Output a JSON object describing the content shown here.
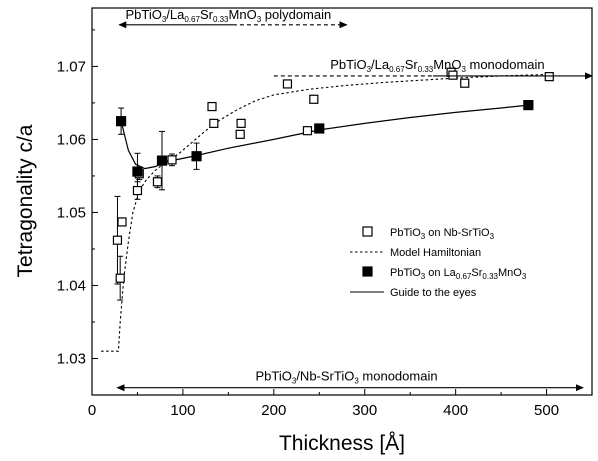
{
  "chart_data": {
    "type": "scatter",
    "title": "",
    "xlabel": "Thickness [Å]",
    "ylabel": "Tetragonality c/a",
    "xlim": [
      0,
      550
    ],
    "ylim": [
      1.025,
      1.078
    ],
    "xticks": [
      0,
      100,
      200,
      300,
      400,
      500
    ],
    "xtick_labels": [
      "0",
      "100",
      "200",
      "300",
      "400",
      "500"
    ],
    "yticks": [
      1.03,
      1.04,
      1.05,
      1.06,
      1.07
    ],
    "ytick_labels": [
      "1.03",
      "1.04",
      "1.05",
      "1.06",
      "1.07"
    ],
    "grid": false,
    "legend": {
      "position": "center-right",
      "entries": [
        {
          "label_parts": [
            [
              "PbTiO",
              "n"
            ],
            [
              "3",
              "s"
            ],
            [
              " on Nb-SrTiO",
              "n"
            ],
            [
              "3",
              "s"
            ]
          ],
          "marker": "open-square"
        },
        {
          "label_parts": [
            [
              "Model Hamiltonian",
              "n"
            ]
          ],
          "marker": "dotted-line"
        },
        {
          "label_parts": [
            [
              "PbTiO",
              "n"
            ],
            [
              "3",
              "s"
            ],
            [
              " on La",
              "n"
            ],
            [
              "0.67",
              "s"
            ],
            [
              "Sr",
              "n"
            ],
            [
              "0.33",
              "s"
            ],
            [
              "MnO",
              "n"
            ],
            [
              "3",
              "s"
            ]
          ],
          "marker": "filled-square"
        },
        {
          "label_parts": [
            [
              "Guide to the eyes",
              "n"
            ]
          ],
          "marker": "solid-line"
        }
      ]
    },
    "series": [
      {
        "name": "PbTiO3 on Nb-SrTiO3",
        "marker": "open-square",
        "points": [
          {
            "x": 28,
            "y": 1.0462,
            "err": 0.006
          },
          {
            "x": 31,
            "y": 1.041,
            "err": 0.003
          },
          {
            "x": 33,
            "y": 1.0487,
            "err": 0.0
          },
          {
            "x": 50,
            "y": 1.053,
            "err": 0.0012
          },
          {
            "x": 52,
            "y": 1.0553,
            "err": 0.0008
          },
          {
            "x": 72,
            "y": 1.0542,
            "err": 0.0008
          },
          {
            "x": 88,
            "y": 1.0572,
            "err": 0.0008
          },
          {
            "x": 132,
            "y": 1.0645,
            "err": 0.0
          },
          {
            "x": 134,
            "y": 1.0622,
            "err": 0.0
          },
          {
            "x": 163,
            "y": 1.0607,
            "err": 0.0
          },
          {
            "x": 164,
            "y": 1.0622,
            "err": 0.0
          },
          {
            "x": 215,
            "y": 1.0676,
            "err": 0.0
          },
          {
            "x": 237,
            "y": 1.0612,
            "err": 0.0
          },
          {
            "x": 244,
            "y": 1.0655,
            "err": 0.0
          },
          {
            "x": 395,
            "y": 1.0692,
            "err": 0.0
          },
          {
            "x": 397,
            "y": 1.0688,
            "err": 0.0
          },
          {
            "x": 410,
            "y": 1.0677,
            "err": 0.0
          },
          {
            "x": 503,
            "y": 1.0686,
            "err": 0.0
          }
        ]
      },
      {
        "name": "PbTiO3 on La0.67Sr0.33MnO3",
        "marker": "filled-square",
        "points": [
          {
            "x": 32,
            "y": 1.0625,
            "err": 0.0018
          },
          {
            "x": 50,
            "y": 1.0556,
            "err": 0.0025
          },
          {
            "x": 77,
            "y": 1.0571,
            "err": 0.004
          },
          {
            "x": 115,
            "y": 1.0577,
            "err": 0.0018
          },
          {
            "x": 250,
            "y": 1.0615,
            "err": 0.0
          },
          {
            "x": 480,
            "y": 1.0647,
            "err": 0.0
          }
        ]
      },
      {
        "name": "Model Hamiltonian",
        "style": "dotted-line",
        "points": [
          [
            10,
            1.031
          ],
          [
            29,
            1.031
          ],
          [
            31,
            1.035
          ],
          [
            35,
            1.041
          ],
          [
            40,
            1.046
          ],
          [
            45,
            1.05
          ],
          [
            52,
            1.053
          ],
          [
            60,
            1.0545
          ],
          [
            70,
            1.0558
          ],
          [
            80,
            1.0568
          ],
          [
            95,
            1.058
          ],
          [
            110,
            1.0596
          ],
          [
            125,
            1.0612
          ],
          [
            140,
            1.0626
          ],
          [
            160,
            1.0641
          ],
          [
            180,
            1.0653
          ],
          [
            200,
            1.0661
          ],
          [
            240,
            1.0669
          ],
          [
            280,
            1.0674
          ],
          [
            320,
            1.0678
          ],
          [
            360,
            1.0681
          ],
          [
            400,
            1.0684
          ],
          [
            450,
            1.0687
          ],
          [
            505,
            1.0689
          ]
        ]
      },
      {
        "name": "Guide to the eyes",
        "style": "solid-line",
        "points": [
          [
            32,
            1.0625
          ],
          [
            40,
            1.0585
          ],
          [
            48,
            1.0566
          ],
          [
            58,
            1.056
          ],
          [
            70,
            1.0563
          ],
          [
            80,
            1.0569
          ],
          [
            100,
            1.0574
          ],
          [
            115,
            1.0578
          ],
          [
            150,
            1.0588
          ],
          [
            200,
            1.06
          ],
          [
            250,
            1.0613
          ],
          [
            300,
            1.0622
          ],
          [
            350,
            1.063
          ],
          [
            400,
            1.0637
          ],
          [
            450,
            1.0643
          ],
          [
            480,
            1.0647
          ]
        ]
      }
    ],
    "annotations": [
      {
        "label_parts": [
          [
            "PbTiO",
            "n"
          ],
          [
            "3",
            "s"
          ],
          [
            "/La",
            "n"
          ],
          [
            "0.67",
            "s"
          ],
          [
            "Sr",
            "n"
          ],
          [
            "0.33",
            "s"
          ],
          [
            "MnO",
            "n"
          ],
          [
            "3",
            "s"
          ],
          [
            " polydomain",
            "n"
          ]
        ],
        "x_from": 30,
        "x_to": 280,
        "y": 1.0757,
        "line_style": "left-solid-right-dashed",
        "arrows": "both"
      },
      {
        "label_parts": [
          [
            "PbTiO",
            "n"
          ],
          [
            "3",
            "s"
          ],
          [
            "/La",
            "n"
          ],
          [
            "0.67",
            "s"
          ],
          [
            "Sr",
            "n"
          ],
          [
            "0.33",
            "s"
          ],
          [
            "MnO",
            "n"
          ],
          [
            "3",
            "s"
          ],
          [
            " monodomain",
            "n"
          ]
        ],
        "x_from": 200,
        "x_to": 550,
        "y": 1.0687,
        "line_style": "left-dashed-right-solid",
        "arrows": "right"
      },
      {
        "label_parts": [
          [
            "PbTiO",
            "n"
          ],
          [
            "3",
            "s"
          ],
          [
            "/Nb-SrTiO",
            "n"
          ],
          [
            "3",
            "s"
          ],
          [
            " monodomain",
            "n"
          ]
        ],
        "x_from": 28,
        "x_to": 540,
        "y": 1.026,
        "line_style": "solid",
        "arrows": "both"
      }
    ]
  }
}
